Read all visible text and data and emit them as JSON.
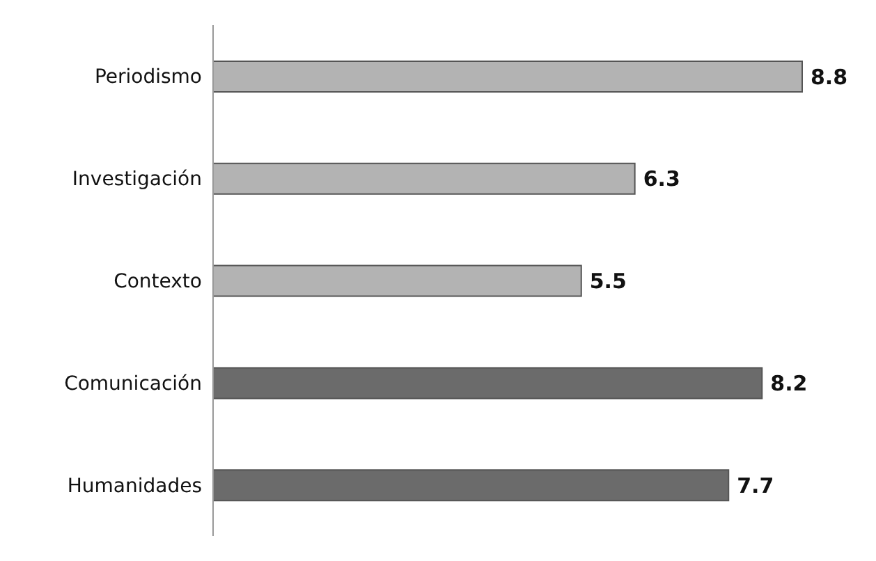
{
  "chart_data": {
    "type": "bar",
    "orientation": "horizontal",
    "categories": [
      "Periodismo",
      "Investigación",
      "Contexto",
      "Comunicación",
      "Humanidades"
    ],
    "values": [
      8.8,
      6.3,
      5.5,
      8.2,
      7.7
    ],
    "colors": [
      "#b3b3b3",
      "#b3b3b3",
      "#b3b3b3",
      "#6b6b6b",
      "#6b6b6b"
    ],
    "data_labels": true,
    "tick_labels": "y"
  }
}
